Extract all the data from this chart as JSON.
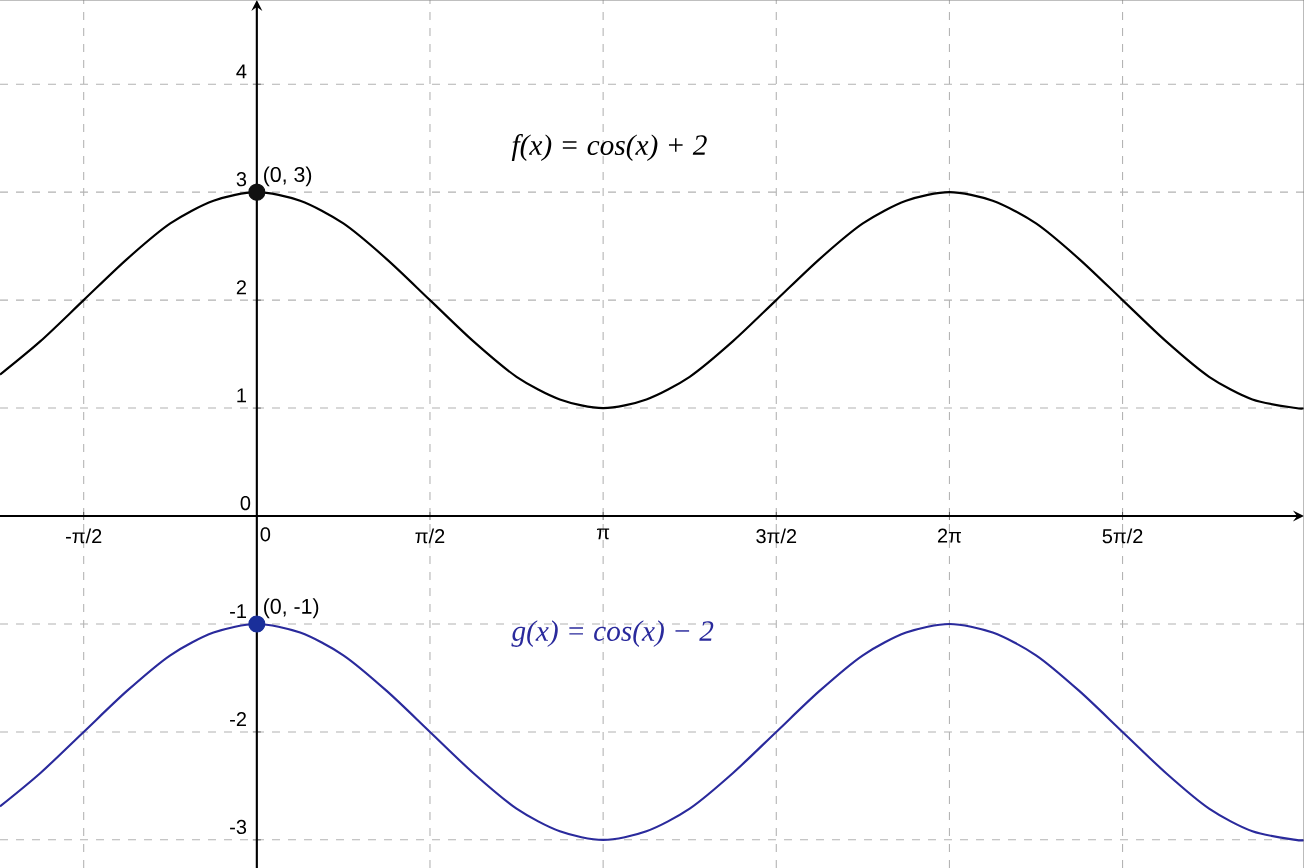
{
  "chart_data": {
    "type": "line",
    "xlim": [
      -2.33,
      9.5
    ],
    "ylim": [
      -3.26,
      4.78
    ],
    "xticks": [
      {
        "value": -1.5708,
        "label": "-π/2"
      },
      {
        "value": 0,
        "label": "0"
      },
      {
        "value": 1.5708,
        "label": "π/2"
      },
      {
        "value": 3.1416,
        "label": "π"
      },
      {
        "value": 4.7124,
        "label": "3π/2"
      },
      {
        "value": 6.2832,
        "label": "2π"
      },
      {
        "value": 7.854,
        "label": "5π/2"
      }
    ],
    "yticks": [
      -3,
      -2,
      -1,
      0,
      1,
      2,
      3,
      4
    ],
    "grid": true,
    "series": [
      {
        "name": "f(x) = cos(x) + 2",
        "color": "#000000",
        "marker": "none",
        "x": [
          -2.33,
          -1.963,
          -1.571,
          -1.178,
          -0.785,
          -0.393,
          0,
          0.393,
          0.785,
          1.178,
          1.571,
          1.963,
          2.356,
          2.749,
          3.142,
          3.534,
          3.927,
          4.32,
          4.712,
          5.105,
          5.498,
          5.89,
          6.283,
          6.676,
          7.069,
          7.461,
          7.854,
          8.247,
          8.639,
          9.032,
          9.425,
          9.5
        ],
        "values": [
          1.31,
          1.62,
          2,
          2.38,
          2.71,
          2.92,
          3,
          2.92,
          2.71,
          2.38,
          2,
          1.62,
          1.29,
          1.08,
          1,
          1.08,
          1.29,
          1.62,
          2,
          2.38,
          2.71,
          2.92,
          3,
          2.92,
          2.71,
          2.38,
          2,
          1.62,
          1.29,
          1.08,
          1,
          1
        ]
      },
      {
        "name": "g(x) = cos(x) − 2",
        "color": "#2a2a9c",
        "marker": "none",
        "x": [
          -2.33,
          -1.963,
          -1.571,
          -1.178,
          -0.785,
          -0.393,
          0,
          0.393,
          0.785,
          1.178,
          1.571,
          1.963,
          2.356,
          2.749,
          3.142,
          3.534,
          3.927,
          4.32,
          4.712,
          5.105,
          5.498,
          5.89,
          6.283,
          6.676,
          7.069,
          7.461,
          7.854,
          8.247,
          8.639,
          9.032,
          9.425,
          9.5
        ],
        "values": [
          -2.69,
          -2.38,
          -2,
          -1.62,
          -1.29,
          -1.08,
          -1,
          -1.08,
          -1.29,
          -1.62,
          -2,
          -2.38,
          -2.71,
          -2.92,
          -3,
          -2.92,
          -2.71,
          -2.38,
          -2,
          -1.62,
          -1.29,
          -1.08,
          -1,
          -1.08,
          -1.29,
          -1.62,
          -2,
          -2.38,
          -2.71,
          -2.92,
          -3,
          -3
        ]
      },
      {
        "type": "scatter",
        "color": "#111111",
        "marker": "circle",
        "x": [
          0
        ],
        "values": [
          3
        ]
      },
      {
        "type": "scatter",
        "color": "#1a2f9a",
        "marker": "circle",
        "x": [
          0
        ],
        "values": [
          -1
        ]
      }
    ],
    "annotations": [
      {
        "text": "(0, 3)",
        "x": 0,
        "y": 3
      },
      {
        "text": "(0, -1)",
        "x": 0,
        "y": -1
      }
    ]
  }
}
